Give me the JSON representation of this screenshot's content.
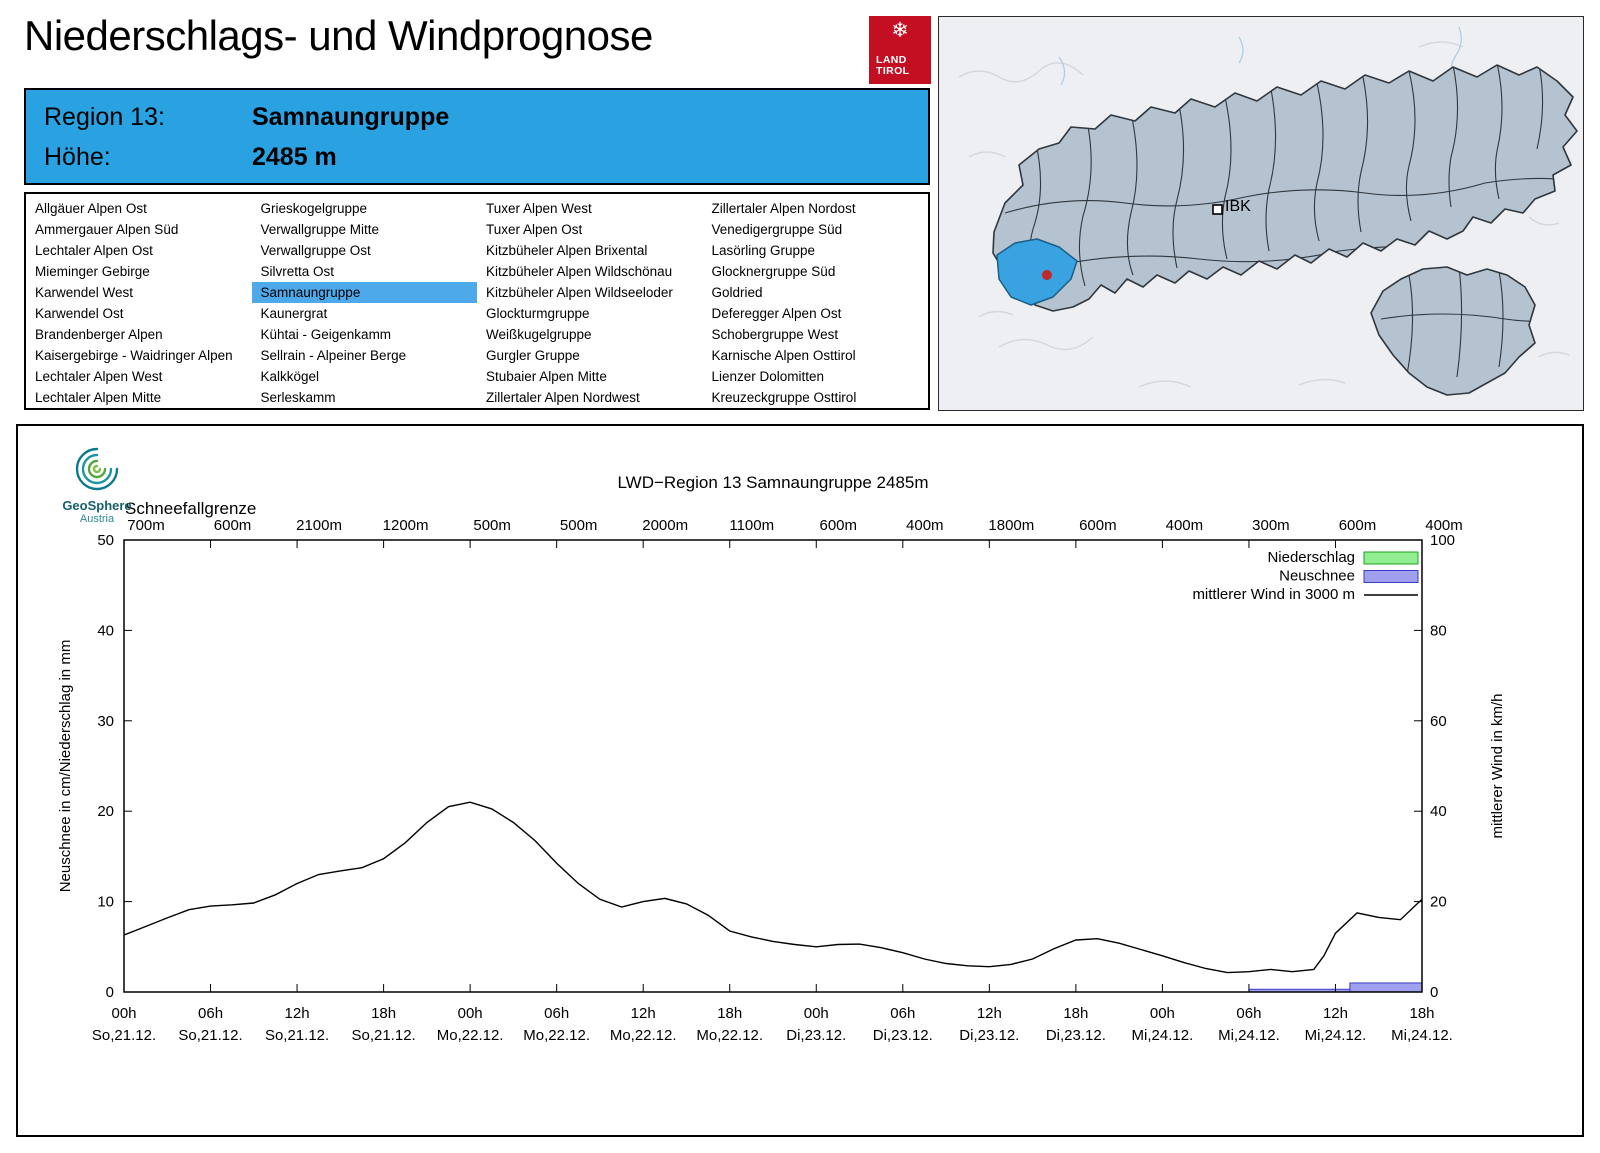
{
  "colors": {
    "header_box_blue": "#2aa2e2",
    "selected_region_blue": "#4da9ea",
    "brand_red": "#c40f23",
    "map_highlight_blue": "#39a3e1",
    "niederschlag_fill": "#90ee90",
    "niederschlag_stroke": "#1ea01e",
    "neuschnee_fill": "#a0a0ee",
    "neuschnee_stroke": "#3a3ac8",
    "wind_line": "#000000"
  },
  "header": {
    "title": "Niederschlags- und Windprognose",
    "logo": {
      "line1": "LAND",
      "line2": "TIROL"
    },
    "region_box": {
      "region_label": "Region 13:",
      "region_value": "Samnaungruppe",
      "altitude_label": "Höhe:",
      "altitude_value": "2485 m"
    }
  },
  "map": {
    "city_label": "IBK"
  },
  "region_table": {
    "selected": "Samnaungruppe",
    "columns": [
      [
        "Allgäuer Alpen Ost",
        "Ammergauer Alpen Süd",
        "Lechtaler Alpen Ost",
        "Mieminger Gebirge",
        "Karwendel West",
        "Karwendel Ost",
        "Brandenberger Alpen",
        "Kaisergebirge - Waidringer Alpen",
        "Lechtaler Alpen West",
        "Lechtaler Alpen Mitte"
      ],
      [
        "Grieskogelgruppe",
        "Verwallgruppe Mitte",
        "Verwallgruppe Ost",
        "Silvretta Ost",
        "Samnaungruppe",
        "Kaunergrat",
        "Kühtai - Geigenkamm",
        "Sellrain - Alpeiner Berge",
        "Kalkkögel",
        "Serleskamm"
      ],
      [
        "Tuxer Alpen West",
        "Tuxer Alpen Ost",
        "Kitzbüheler Alpen Brixental",
        "Kitzbüheler Alpen Wildschönau",
        "Kitzbüheler Alpen Wildseeloder",
        "Glockturmgruppe",
        "Weißkugelgruppe",
        "Gurgler Gruppe",
        "Stubaier Alpen Mitte",
        "Zillertaler Alpen Nordwest"
      ],
      [
        "Zillertaler Alpen Nordost",
        "Venedigergruppe Süd",
        "Lasörling Gruppe",
        "Glocknergruppe Süd",
        "Goldried",
        "Deferegger Alpen Ost",
        "Schobergruppe West",
        "Karnische Alpen Osttirol",
        "Lienzer Dolomitten",
        "Kreuzeckgruppe Osttirol"
      ]
    ]
  },
  "branding": {
    "geosphere_line1": "GeoSphere",
    "geosphere_line2": "Austria"
  },
  "chart_data": {
    "type": "line",
    "title": "LWD−Region 13 Samnaungruppe 2485m",
    "snowline_label": "Schneefallgrenze",
    "snowline_values": [
      "700m",
      "600m",
      "2100m",
      "1200m",
      "500m",
      "500m",
      "2000m",
      "1100m",
      "600m",
      "400m",
      "1800m",
      "600m",
      "400m",
      "300m",
      "600m",
      "400m"
    ],
    "ylabel_left": "Neuschnee in cm/Niederschlag in mm",
    "ylabel_right": "mittlerer Wind in km/h",
    "ylim_left": [
      0,
      50
    ],
    "ylim_right": [
      0,
      100
    ],
    "yticks_left": [
      0,
      10,
      20,
      30,
      40,
      50
    ],
    "yticks_right": [
      0,
      20,
      40,
      60,
      80,
      100
    ],
    "x_hours_range": [
      0,
      90
    ],
    "x_ticks": [
      {
        "hour": "00h",
        "date": "So,21.12."
      },
      {
        "hour": "06h",
        "date": "So,21.12."
      },
      {
        "hour": "12h",
        "date": "So,21.12."
      },
      {
        "hour": "18h",
        "date": "So,21.12."
      },
      {
        "hour": "00h",
        "date": "Mo,22.12."
      },
      {
        "hour": "06h",
        "date": "Mo,22.12."
      },
      {
        "hour": "12h",
        "date": "Mo,22.12."
      },
      {
        "hour": "18h",
        "date": "Mo,22.12."
      },
      {
        "hour": "00h",
        "date": "Di,23.12."
      },
      {
        "hour": "06h",
        "date": "Di,23.12."
      },
      {
        "hour": "12h",
        "date": "Di,23.12."
      },
      {
        "hour": "18h",
        "date": "Di,23.12."
      },
      {
        "hour": "00h",
        "date": "Mi,24.12."
      },
      {
        "hour": "06h",
        "date": "Mi,24.12."
      },
      {
        "hour": "12h",
        "date": "Mi,24.12."
      },
      {
        "hour": "18h",
        "date": "Mi,24.12."
      }
    ],
    "legend": [
      {
        "label": "Niederschlag",
        "type": "box",
        "fill": "#90ee90",
        "stroke": "#1ea01e"
      },
      {
        "label": "Neuschnee",
        "type": "box",
        "fill": "#a0a0ee",
        "stroke": "#3a3ac8"
      },
      {
        "label": "mittlerer Wind in 3000 m",
        "type": "line",
        "stroke": "#000000"
      }
    ],
    "wind_series": {
      "name": "mittlerer Wind in 3000 m",
      "unit": "km/h",
      "points": [
        [
          0,
          12.6
        ],
        [
          1.5,
          14.5
        ],
        [
          3,
          16.4
        ],
        [
          4.5,
          18.2
        ],
        [
          6,
          19.0
        ],
        [
          7.5,
          19.3
        ],
        [
          9,
          19.7
        ],
        [
          10.5,
          21.5
        ],
        [
          12,
          24.0
        ],
        [
          13.5,
          26.0
        ],
        [
          15,
          26.8
        ],
        [
          16.5,
          27.5
        ],
        [
          18,
          29.5
        ],
        [
          19.5,
          33.0
        ],
        [
          21,
          37.5
        ],
        [
          22.5,
          41.0
        ],
        [
          24,
          42.0
        ],
        [
          25.5,
          40.5
        ],
        [
          27,
          37.5
        ],
        [
          28.5,
          33.5
        ],
        [
          30,
          28.5
        ],
        [
          31.5,
          24.0
        ],
        [
          33,
          20.5
        ],
        [
          34.5,
          18.8
        ],
        [
          36,
          20.0
        ],
        [
          37.5,
          20.7
        ],
        [
          39,
          19.5
        ],
        [
          40.5,
          17.0
        ],
        [
          42,
          13.5
        ],
        [
          43.5,
          12.2
        ],
        [
          45,
          11.2
        ],
        [
          46.5,
          10.5
        ],
        [
          48,
          10.0
        ],
        [
          49.5,
          10.5
        ],
        [
          51,
          10.6
        ],
        [
          52.5,
          9.8
        ],
        [
          54,
          8.7
        ],
        [
          55.5,
          7.3
        ],
        [
          57,
          6.3
        ],
        [
          58.5,
          5.8
        ],
        [
          60,
          5.6
        ],
        [
          61.5,
          6.1
        ],
        [
          63,
          7.3
        ],
        [
          64.5,
          9.6
        ],
        [
          66,
          11.5
        ],
        [
          67.5,
          11.8
        ],
        [
          69,
          10.8
        ],
        [
          70.5,
          9.4
        ],
        [
          72,
          8.0
        ],
        [
          73.5,
          6.5
        ],
        [
          75,
          5.2
        ],
        [
          76.5,
          4.3
        ],
        [
          78,
          4.5
        ],
        [
          79.5,
          5.0
        ],
        [
          81,
          4.5
        ],
        [
          82.5,
          5.0
        ],
        [
          83.2,
          8.0
        ],
        [
          84,
          13.0
        ],
        [
          85.5,
          17.5
        ],
        [
          87,
          16.5
        ],
        [
          88.5,
          16.0
        ],
        [
          90,
          20.5
        ]
      ]
    },
    "neuschnee_bars": [
      {
        "from_hour": 78,
        "to_hour": 85,
        "cm": 0.3
      },
      {
        "from_hour": 85,
        "to_hour": 90,
        "cm": 1.0
      }
    ],
    "niederschlag_bars": []
  }
}
